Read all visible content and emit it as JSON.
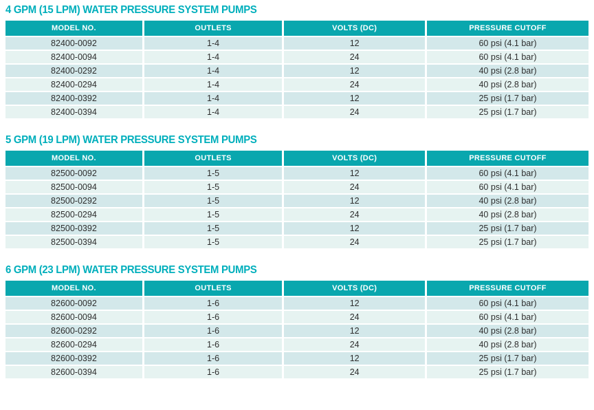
{
  "colors": {
    "title_text": "#00afbc",
    "header_bg": "#09a7ae",
    "header_text": "#ffffff",
    "row_odd_bg": "#d3e8ea",
    "row_even_bg": "#e6f3f1",
    "cell_text": "#2e2e2e",
    "page_bg": "#ffffff"
  },
  "columns": [
    "MODEL NO.",
    "OUTLETS",
    "VOLTS (DC)",
    "PRESSURE CUTOFF"
  ],
  "sections": [
    {
      "title": "4 GPM (15 LPM) WATER PRESSURE SYSTEM PUMPS",
      "rows": [
        [
          "82400-0092",
          "1-4",
          "12",
          "60 psi (4.1 bar)"
        ],
        [
          "82400-0094",
          "1-4",
          "24",
          "60 psi (4.1 bar)"
        ],
        [
          "82400-0292",
          "1-4",
          "12",
          "40 psi (2.8 bar)"
        ],
        [
          "82400-0294",
          "1-4",
          "24",
          "40 psi (2.8 bar)"
        ],
        [
          "82400-0392",
          "1-4",
          "12",
          "25 psi (1.7 bar)"
        ],
        [
          "82400-0394",
          "1-4",
          "24",
          "25 psi (1.7 bar)"
        ]
      ]
    },
    {
      "title": "5 GPM (19 LPM) WATER PRESSURE SYSTEM PUMPS",
      "rows": [
        [
          "82500-0092",
          "1-5",
          "12",
          "60 psi (4.1 bar)"
        ],
        [
          "82500-0094",
          "1-5",
          "24",
          "60 psi (4.1 bar)"
        ],
        [
          "82500-0292",
          "1-5",
          "12",
          "40 psi (2.8 bar)"
        ],
        [
          "82500-0294",
          "1-5",
          "24",
          "40 psi (2.8 bar)"
        ],
        [
          "82500-0392",
          "1-5",
          "12",
          "25 psi (1.7 bar)"
        ],
        [
          "82500-0394",
          "1-5",
          "24",
          "25 psi (1.7 bar)"
        ]
      ]
    },
    {
      "title": "6 GPM (23 LPM) WATER PRESSURE SYSTEM PUMPS",
      "rows": [
        [
          "82600-0092",
          "1-6",
          "12",
          "60 psi (4.1 bar)"
        ],
        [
          "82600-0094",
          "1-6",
          "24",
          "60 psi (4.1 bar)"
        ],
        [
          "82600-0292",
          "1-6",
          "12",
          "40 psi (2.8 bar)"
        ],
        [
          "82600-0294",
          "1-6",
          "24",
          "40 psi (2.8 bar)"
        ],
        [
          "82600-0392",
          "1-6",
          "12",
          "25 psi (1.7 bar)"
        ],
        [
          "82600-0394",
          "1-6",
          "24",
          "25 psi (1.7 bar)"
        ]
      ]
    }
  ]
}
